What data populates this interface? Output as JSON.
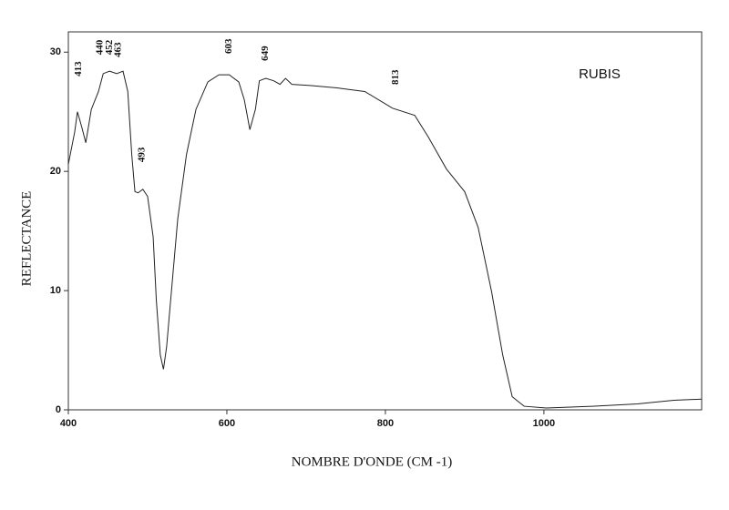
{
  "chart_data": {
    "type": "line",
    "title": "RUBIS",
    "xlabel": "NOMBRE D'ONDE (CM -1)",
    "ylabel": "REFLECTANCE",
    "xlim": [
      400,
      1199
    ],
    "ylim": [
      0,
      31.7
    ],
    "xticks": [
      400,
      600,
      800,
      1000
    ],
    "yticks": [
      0,
      10,
      20,
      30
    ],
    "grid": false,
    "series": [
      {
        "name": "RUBIS",
        "color": "#222222",
        "x": [
          400,
          408,
          411.5,
          417,
          422,
          429,
          438,
          444,
          452,
          461,
          469,
          475,
          480,
          484,
          488,
          494,
          500,
          507,
          511,
          516,
          520,
          524,
          530,
          538,
          549,
          561,
          576,
          590,
          603,
          615,
          622,
          629,
          636,
          641,
          649,
          659,
          667,
          674,
          682,
          705,
          739,
          774,
          809,
          837,
          854,
          877,
          900,
          917,
          934,
          948,
          960,
          975,
          1003,
          1061,
          1118,
          1164,
          1199
        ],
        "values": [
          20.6,
          23.3,
          25.0,
          23.7,
          22.4,
          25.2,
          26.7,
          28.2,
          28.4,
          28.2,
          28.4,
          26.7,
          21.4,
          18.3,
          18.2,
          18.5,
          17.9,
          14.5,
          9.2,
          4.6,
          3.4,
          5.3,
          9.9,
          16.0,
          21.4,
          25.2,
          27.5,
          28.1,
          28.1,
          27.5,
          26.0,
          23.5,
          25.2,
          27.6,
          27.8,
          27.6,
          27.3,
          27.8,
          27.3,
          27.2,
          27.0,
          26.7,
          25.3,
          24.7,
          22.9,
          20.2,
          18.3,
          15.3,
          9.9,
          4.6,
          1.1,
          0.3,
          0.15,
          0.3,
          0.5,
          0.8,
          0.9
        ]
      }
    ],
    "annotations": [
      {
        "text": "413",
        "x": 413,
        "y": 28.6
      },
      {
        "text": "440",
        "x": 440,
        "y": 30.4
      },
      {
        "text": "452",
        "x": 452,
        "y": 30.4
      },
      {
        "text": "463",
        "x": 463,
        "y": 30.2
      },
      {
        "text": "493",
        "x": 493,
        "y": 21.4
      },
      {
        "text": "603",
        "x": 603,
        "y": 30.5
      },
      {
        "text": "649",
        "x": 649,
        "y": 29.9
      },
      {
        "text": "813",
        "x": 813,
        "y": 27.9
      }
    ]
  }
}
